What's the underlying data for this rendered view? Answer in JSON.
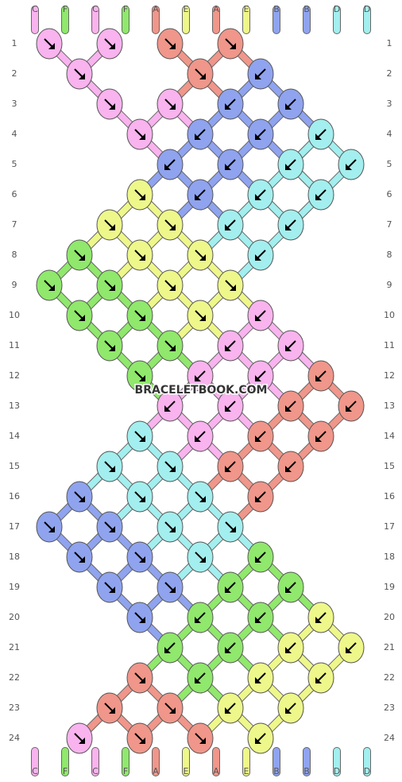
{
  "top_labels": [
    "C",
    "F",
    "C",
    "F",
    "A",
    "E",
    "A",
    "E",
    "B",
    "B",
    "D",
    "D"
  ],
  "bottom_labels": [
    "C",
    "F",
    "C",
    "F",
    "A",
    "E",
    "A",
    "E",
    "B",
    "B",
    "D",
    "D"
  ],
  "row_numbers": [
    1,
    2,
    3,
    4,
    5,
    6,
    7,
    8,
    9,
    10,
    11,
    12,
    13,
    14,
    15,
    16,
    17,
    18,
    19,
    20,
    21,
    22,
    23,
    24
  ],
  "watermark": "BRACELETBOOK.COM"
}
